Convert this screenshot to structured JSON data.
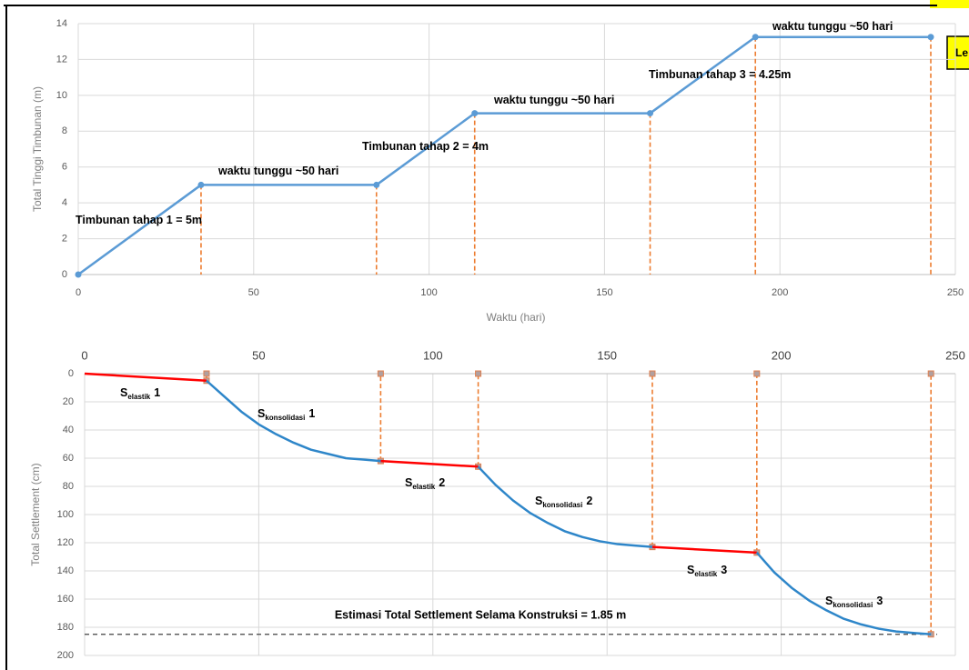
{
  "legend_text": "Le",
  "chart_data": [
    {
      "type": "line",
      "y_label": "Total Tinggi Timbunan (m)",
      "x_label": "Waktu (hari)",
      "xlim": [
        0,
        250
      ],
      "xticks": [
        0,
        50,
        100,
        150,
        200,
        250
      ],
      "ylim": [
        0,
        14
      ],
      "yticks": [
        0,
        2,
        4,
        6,
        8,
        10,
        12,
        14
      ],
      "grid": true,
      "x_axis": "bottom",
      "y_inverted": false,
      "drop_color": "#ed7d31",
      "series": [
        {
          "color": "#5b9bd5",
          "markers": true,
          "drop_lines": "all",
          "x": [
            0,
            35,
            85,
            113,
            163,
            193,
            243
          ],
          "values": [
            0,
            5,
            5,
            9,
            9,
            13.25,
            13.25
          ]
        }
      ],
      "annotations": [
        {
          "text": "waktu tunggu ~50 hari"
        },
        {
          "text": "waktu tunggu ~50 hari"
        },
        {
          "text": "waktu tunggu ~50 hari"
        },
        {
          "text": "Timbunan tahap 1 = 5m"
        },
        {
          "text": "Timbunan tahap 2 = 4m"
        },
        {
          "text": "Timbunan tahap 3 = 4.25m"
        }
      ]
    },
    {
      "type": "line",
      "y_label": "Total Settlement (cm)",
      "xlim": [
        0,
        250
      ],
      "xticks": [
        0,
        50,
        100,
        150,
        200,
        250
      ],
      "ylim": [
        0,
        200
      ],
      "yticks": [
        0,
        20,
        40,
        60,
        80,
        100,
        120,
        140,
        160,
        180,
        200
      ],
      "grid": true,
      "x_axis": "top",
      "y_inverted": true,
      "drop_color": "#ed7d31",
      "series": [
        {
          "color": "#ff0000",
          "markers": false,
          "drop_lines": "none",
          "x": [
            0,
            35,
            60,
            85,
            113,
            140,
            163,
            193
          ],
          "values": [
            0,
            5,
            null,
            62,
            66,
            null,
            123,
            127
          ]
        },
        {
          "color": "#2e86c9",
          "markers": false,
          "drop_lines": "ends",
          "x": [
            35,
            40,
            45,
            50,
            55,
            60,
            65,
            70,
            75,
            80,
            85,
            99,
            113,
            118,
            123,
            128,
            133,
            138,
            143,
            148,
            153,
            158,
            163,
            178,
            193,
            198,
            203,
            208,
            213,
            218,
            223,
            228,
            233,
            238,
            243
          ],
          "values": [
            5,
            16,
            27,
            36,
            43,
            49,
            54,
            57,
            60,
            61,
            62,
            null,
            66,
            79,
            90,
            99,
            106,
            112,
            116,
            119,
            121,
            122,
            123,
            null,
            127,
            141,
            152,
            161,
            168,
            174,
            178,
            181,
            183,
            184,
            185
          ]
        }
      ],
      "ref_line": {
        "value": 185,
        "color": "#404040",
        "label": "Estimasi Total Settlement Selama Konstruksi = 1.85 m"
      },
      "annotations": [
        {
          "text": "S",
          "sub": "elastik",
          "suffix": "1"
        },
        {
          "text": "S",
          "sub": "konsolidasi",
          "suffix": "1"
        },
        {
          "text": "S",
          "sub": "elastik",
          "suffix": "2"
        },
        {
          "text": "S",
          "sub": "konsolidasi",
          "suffix": "2"
        },
        {
          "text": "S",
          "sub": "elastik",
          "suffix": "3"
        },
        {
          "text": "S",
          "sub": "konsolidasi",
          "suffix": "3"
        }
      ]
    }
  ]
}
